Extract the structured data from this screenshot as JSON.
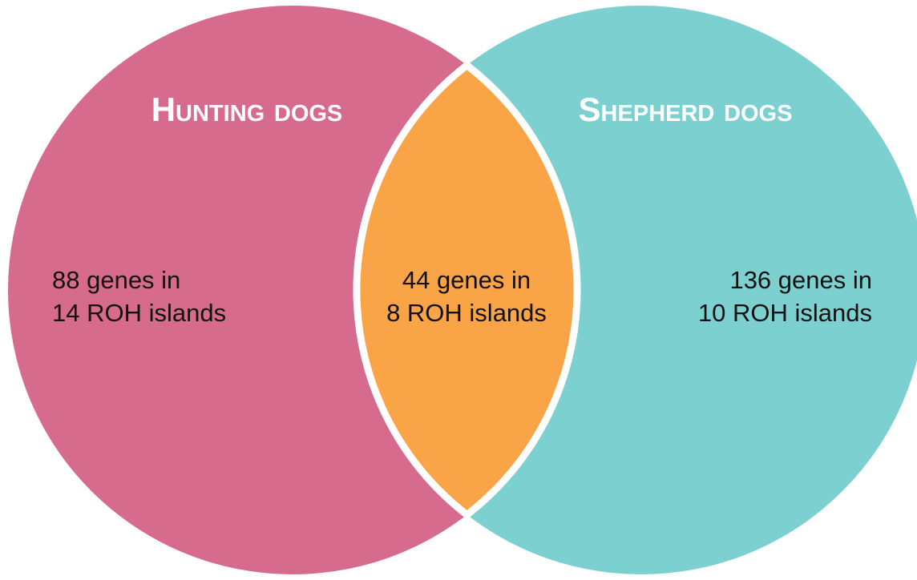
{
  "sets": [
    {
      "title": "Hunting dogs",
      "lines": [
        "88 genes in",
        "14 ROH islands"
      ]
    },
    {
      "title": "Shepherd dogs",
      "lines": [
        "136 genes in",
        "10 ROH islands"
      ]
    }
  ],
  "intersection": {
    "lines": [
      "44 genes in",
      "8 ROH islands"
    ]
  }
}
